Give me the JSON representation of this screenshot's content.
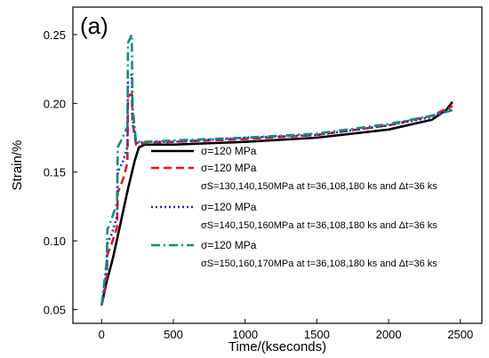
{
  "chart_data": {
    "type": "line",
    "panel_label": "(a)",
    "xlabel": "Time/(kseconds)",
    "ylabel": "Strain/%",
    "xlim": [
      -200,
      2650
    ],
    "ylim": [
      0.04,
      0.27
    ],
    "xticks": [
      0,
      500,
      1000,
      1500,
      2000,
      2500
    ],
    "yticks": [
      0.05,
      0.1,
      0.15,
      0.2,
      0.25
    ],
    "ytick_labels": [
      "0.05",
      "0.10",
      "0.15",
      "0.20",
      "0.25"
    ],
    "grid": false,
    "legend_position": "center-right",
    "series": [
      {
        "legend_label": "σ=120 MPa",
        "legend_sub": "",
        "color": "#000000",
        "dash": "",
        "width": 2.6,
        "points": [
          [
            0,
            0.053
          ],
          [
            30,
            0.068
          ],
          [
            80,
            0.088
          ],
          [
            130,
            0.112
          ],
          [
            180,
            0.136
          ],
          [
            230,
            0.158
          ],
          [
            260,
            0.168
          ],
          [
            300,
            0.17
          ],
          [
            500,
            0.17
          ],
          [
            1000,
            0.172
          ],
          [
            1500,
            0.175
          ],
          [
            2000,
            0.181
          ],
          [
            2300,
            0.188
          ],
          [
            2400,
            0.195
          ],
          [
            2445,
            0.201
          ]
        ]
      },
      {
        "legend_label": "σ=120 MPa",
        "legend_sub": "σS=130,140,150MPa at t=36,108,180 ks and Δt=36 ks",
        "color": "#e8141e",
        "dash": "9,5",
        "width": 2.6,
        "points": [
          [
            0,
            0.053
          ],
          [
            36,
            0.074
          ],
          [
            40,
            0.09
          ],
          [
            70,
            0.098
          ],
          [
            108,
            0.11
          ],
          [
            112,
            0.135
          ],
          [
            150,
            0.145
          ],
          [
            180,
            0.157
          ],
          [
            184,
            0.205
          ],
          [
            210,
            0.207
          ],
          [
            216,
            0.186
          ],
          [
            240,
            0.17
          ],
          [
            300,
            0.171
          ],
          [
            500,
            0.172
          ],
          [
            1000,
            0.174
          ],
          [
            1500,
            0.177
          ],
          [
            2000,
            0.184
          ],
          [
            2300,
            0.191
          ],
          [
            2445,
            0.198
          ]
        ]
      },
      {
        "legend_label": "σ=120 MPa",
        "legend_sub": "σS=140,150,160MPa at t=36,108,180 ks and Δt=36 ks",
        "color": "#1a2bd6",
        "dash": "2,3",
        "width": 2.6,
        "points": [
          [
            0,
            0.053
          ],
          [
            36,
            0.078
          ],
          [
            40,
            0.098
          ],
          [
            70,
            0.105
          ],
          [
            108,
            0.118
          ],
          [
            112,
            0.15
          ],
          [
            150,
            0.158
          ],
          [
            180,
            0.168
          ],
          [
            184,
            0.219
          ],
          [
            210,
            0.221
          ],
          [
            216,
            0.19
          ],
          [
            240,
            0.171
          ],
          [
            300,
            0.172
          ],
          [
            500,
            0.172
          ],
          [
            1000,
            0.175
          ],
          [
            1500,
            0.177
          ],
          [
            2000,
            0.184
          ],
          [
            2300,
            0.19
          ],
          [
            2445,
            0.196
          ]
        ]
      },
      {
        "legend_label": "σ=120 MPa",
        "legend_sub": "σS=150,160,170MPa at t=36,108,180 ks and Δt=36 ks",
        "color": "#148a7a",
        "dash": "10,4,2,4",
        "width": 2.6,
        "points": [
          [
            0,
            0.053
          ],
          [
            36,
            0.086
          ],
          [
            40,
            0.108
          ],
          [
            70,
            0.116
          ],
          [
            108,
            0.128
          ],
          [
            112,
            0.168
          ],
          [
            150,
            0.176
          ],
          [
            180,
            0.183
          ],
          [
            184,
            0.244
          ],
          [
            210,
            0.25
          ],
          [
            216,
            0.198
          ],
          [
            240,
            0.172
          ],
          [
            300,
            0.172
          ],
          [
            500,
            0.173
          ],
          [
            1000,
            0.175
          ],
          [
            1500,
            0.178
          ],
          [
            2000,
            0.185
          ],
          [
            2300,
            0.191
          ],
          [
            2445,
            0.195
          ]
        ]
      }
    ]
  }
}
